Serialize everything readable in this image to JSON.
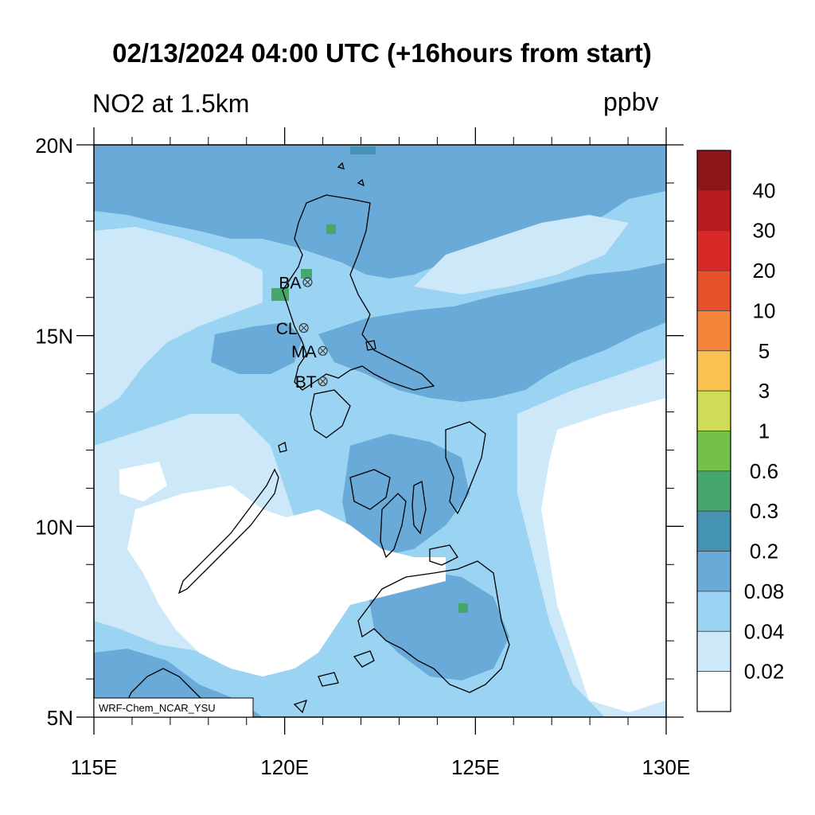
{
  "title": "02/13/2024 04:00 UTC (+16hours from start)",
  "variable_label": "NO2 at 1.5km",
  "unit_label": "ppbv",
  "model_credit": "WRF-Chem_NCAR_YSU",
  "map": {
    "lon_range": [
      115,
      130
    ],
    "lat_range": [
      5,
      20
    ],
    "x_ticks": [
      {
        "value": 115,
        "label": "115E"
      },
      {
        "value": 120,
        "label": "120E"
      },
      {
        "value": 125,
        "label": "125E"
      },
      {
        "value": 130,
        "label": "130E"
      }
    ],
    "y_ticks": [
      {
        "value": 20,
        "label": "20N"
      },
      {
        "value": 15,
        "label": "15N"
      },
      {
        "value": 10,
        "label": "10N"
      },
      {
        "value": 5,
        "label": "5N"
      }
    ],
    "sites": [
      {
        "code": "BA",
        "lon": 120.6,
        "lat": 16.4
      },
      {
        "code": "CL",
        "lon": 120.5,
        "lat": 15.2
      },
      {
        "code": "MA",
        "lon": 121.0,
        "lat": 14.6
      },
      {
        "code": "BT",
        "lon": 121.0,
        "lat": 13.8
      }
    ]
  },
  "colorbar": {
    "labels": [
      "40",
      "30",
      "20",
      "10",
      "5",
      "3",
      "1",
      "0.6",
      "0.3",
      "0.2",
      "0.08",
      "0.04",
      "0.02"
    ],
    "colors": [
      "#8e1518",
      "#b81c22",
      "#d72a28",
      "#e6512b",
      "#f5853a",
      "#f9c24f",
      "#cfdc55",
      "#74c14a",
      "#46a66d",
      "#4593b3",
      "#6aaad9",
      "#9bd3f2",
      "#cde9f9",
      "#ffffff"
    ]
  }
}
